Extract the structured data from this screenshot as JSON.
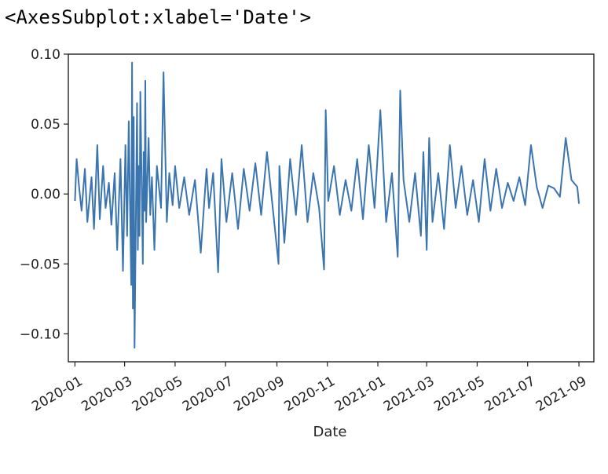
{
  "output_repr": "<AxesSubplot:xlabel='Date'>",
  "chart_data": {
    "type": "line",
    "xlabel": "Date",
    "ylabel": "",
    "title": "",
    "grid": false,
    "line_color": "#3a75af",
    "x_range": [
      "2019-12-24",
      "2021-09-19"
    ],
    "ylim": [
      -0.12,
      0.1
    ],
    "x_ticks": [
      "2020-01",
      "2020-03",
      "2020-05",
      "2020-07",
      "2020-09",
      "2020-11",
      "2021-01",
      "2021-03",
      "2021-05",
      "2021-07",
      "2021-09"
    ],
    "y_ticks": [
      0.1,
      0.05,
      0.0,
      -0.05,
      -0.1
    ],
    "y_tick_labels": [
      "0.10",
      "0.05",
      "0.00",
      "−0.05",
      "−0.10"
    ],
    "series": [
      {
        "x": [
          "2020-01-01",
          "2020-01-03",
          "2020-01-06",
          "2020-01-09",
          "2020-01-13",
          "2020-01-16",
          "2020-01-21",
          "2020-01-24",
          "2020-01-28",
          "2020-01-31",
          "2020-02-04",
          "2020-02-07",
          "2020-02-11",
          "2020-02-14",
          "2020-02-18",
          "2020-02-21",
          "2020-02-25",
          "2020-02-28",
          "2020-03-02",
          "2020-03-04",
          "2020-03-06",
          "2020-03-09",
          "2020-03-10",
          "2020-03-11",
          "2020-03-12",
          "2020-03-13",
          "2020-03-16",
          "2020-03-17",
          "2020-03-18",
          "2020-03-19",
          "2020-03-20",
          "2020-03-23",
          "2020-03-24",
          "2020-03-25",
          "2020-03-26",
          "2020-03-27",
          "2020-03-30",
          "2020-04-01",
          "2020-04-03",
          "2020-04-06",
          "2020-04-09",
          "2020-04-14",
          "2020-04-17",
          "2020-04-21",
          "2020-04-24",
          "2020-04-28",
          "2020-05-01",
          "2020-05-06",
          "2020-05-12",
          "2020-05-18",
          "2020-05-25",
          "2020-06-01",
          "2020-06-08",
          "2020-06-11",
          "2020-06-16",
          "2020-06-22",
          "2020-06-26",
          "2020-07-02",
          "2020-07-09",
          "2020-07-16",
          "2020-07-23",
          "2020-07-30",
          "2020-08-06",
          "2020-08-13",
          "2020-08-20",
          "2020-08-27",
          "2020-09-03",
          "2020-09-04",
          "2020-09-10",
          "2020-09-17",
          "2020-09-24",
          "2020-10-01",
          "2020-10-08",
          "2020-10-15",
          "2020-10-22",
          "2020-10-28",
          "2020-10-30",
          "2020-11-02",
          "2020-11-09",
          "2020-11-16",
          "2020-11-23",
          "2020-11-30",
          "2020-12-07",
          "2020-12-14",
          "2020-12-21",
          "2020-12-28",
          "2021-01-04",
          "2021-01-11",
          "2021-01-18",
          "2021-01-25",
          "2021-01-28",
          "2021-02-01",
          "2021-02-08",
          "2021-02-15",
          "2021-02-22",
          "2021-02-25",
          "2021-03-01",
          "2021-03-04",
          "2021-03-08",
          "2021-03-15",
          "2021-03-22",
          "2021-03-29",
          "2021-04-05",
          "2021-04-12",
          "2021-04-19",
          "2021-04-26",
          "2021-05-03",
          "2021-05-10",
          "2021-05-17",
          "2021-05-24",
          "2021-05-31",
          "2021-06-07",
          "2021-06-14",
          "2021-06-21",
          "2021-06-28",
          "2021-07-05",
          "2021-07-12",
          "2021-07-19",
          "2021-07-26",
          "2021-08-02",
          "2021-08-09",
          "2021-08-16",
          "2021-08-23",
          "2021-08-30",
          "2021-09-01"
        ],
        "y": [
          -0.005,
          0.025,
          0.005,
          -0.012,
          0.018,
          -0.02,
          0.012,
          -0.025,
          0.035,
          -0.018,
          0.02,
          -0.01,
          0.008,
          -0.022,
          0.015,
          -0.04,
          0.025,
          -0.055,
          0.035,
          -0.03,
          0.052,
          -0.065,
          0.094,
          -0.082,
          0.055,
          -0.11,
          0.065,
          -0.04,
          0.02,
          -0.03,
          0.073,
          -0.05,
          0.03,
          -0.012,
          0.081,
          -0.02,
          0.04,
          -0.015,
          0.012,
          -0.04,
          0.02,
          -0.01,
          0.087,
          -0.02,
          0.015,
          -0.008,
          0.02,
          -0.01,
          0.012,
          -0.015,
          0.01,
          -0.042,
          0.018,
          -0.01,
          0.015,
          -0.056,
          0.025,
          -0.02,
          0.015,
          -0.025,
          0.018,
          -0.012,
          0.022,
          -0.015,
          0.03,
          -0.01,
          -0.05,
          0.02,
          -0.035,
          0.025,
          -0.015,
          0.035,
          -0.02,
          0.015,
          -0.01,
          -0.054,
          0.06,
          -0.005,
          0.02,
          -0.015,
          0.01,
          -0.012,
          0.025,
          -0.018,
          0.035,
          -0.01,
          0.06,
          -0.02,
          0.015,
          -0.045,
          0.074,
          0.01,
          -0.02,
          0.015,
          -0.03,
          0.03,
          -0.04,
          0.04,
          -0.02,
          0.015,
          -0.025,
          0.035,
          -0.01,
          0.02,
          -0.015,
          0.01,
          -0.02,
          0.025,
          -0.012,
          0.018,
          -0.01,
          0.008,
          -0.005,
          0.012,
          -0.008,
          0.035,
          0.005,
          -0.01,
          0.006,
          0.004,
          -0.002,
          0.04,
          0.01,
          0.005,
          -0.007
        ]
      }
    ]
  }
}
